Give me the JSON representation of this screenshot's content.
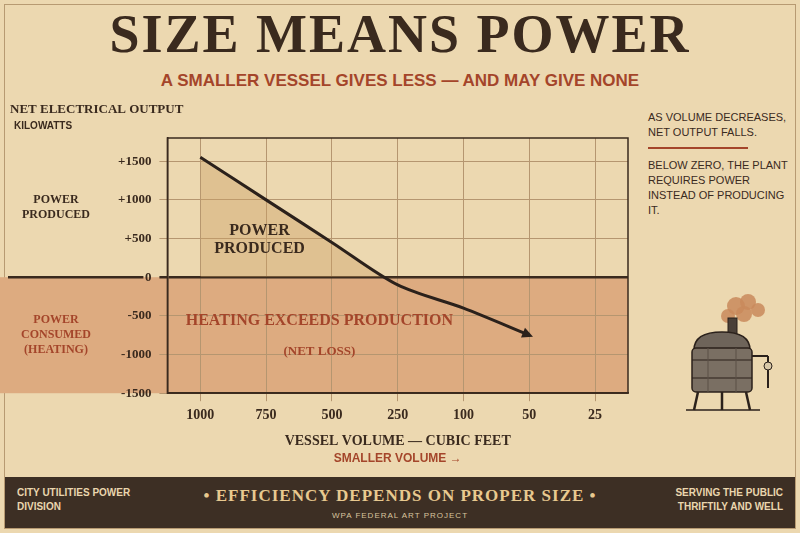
{
  "chart_data": {
    "type": "line",
    "title": "SIZE MEANS POWER",
    "subtitle": "A SMALLER VESSEL GIVES LESS — AND MAY GIVE NONE",
    "y_label": "NET ELECTRICAL OUTPUT",
    "y_unit": "KILOWATTS",
    "x_label": "VESSEL VOLUME — CUBIC FEET",
    "x_direction_label": "SMALLER VOLUME →",
    "categories": [
      "1000",
      "750",
      "500",
      "250",
      "100",
      "50",
      "25"
    ],
    "values": [
      1550,
      1000,
      450,
      -100,
      -400,
      -750,
      null
    ],
    "color": "#2b211b",
    "marker": "none",
    "ylim": [
      -1500,
      1800
    ],
    "yticks": [
      -1500,
      -1000,
      -500,
      0,
      {
        "value": 500,
        "label": "+500"
      },
      {
        "value": 1000,
        "label": "+1000"
      },
      {
        "value": 1500,
        "label": "+1500"
      }
    ],
    "grid": true,
    "side_labels": [
      "POWER PRODUCED",
      "POWER CONSUMED (HEATING)"
    ],
    "annotations": [
      "POWER PRODUCED",
      "HEATING EXCEEDS PRODUCTION",
      "(NET LOSS)"
    ],
    "notes": [
      "AS VOLUME DECREASES, NET OUTPUT FALLS.",
      "BELOW ZERO, THE PLANT REQUIRES POWER INSTEAD OF PRODUCING IT."
    ],
    "footer": {
      "left": "CITY UTILITIES POWER DIVISION",
      "center": "• EFFICIENCY DEPENDS ON PROPER SIZE •",
      "right": "SERVING THE PUBLIC THRIFTILY AND WELL",
      "credit": "WPA FEDERAL ART PROJECT"
    }
  }
}
